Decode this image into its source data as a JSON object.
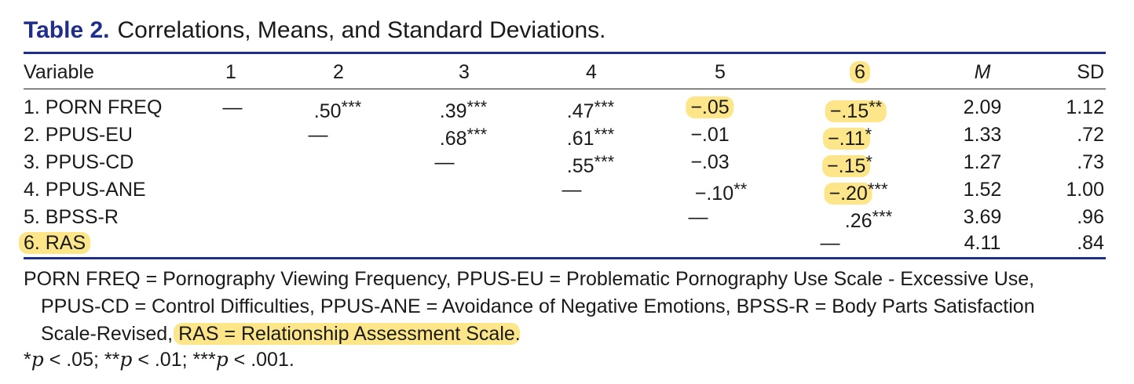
{
  "caption": {
    "label": "Table 2.",
    "title": "Correlations, Means, and Standard Deviations."
  },
  "table": {
    "headers": [
      "Variable",
      "1",
      "2",
      "3",
      "4",
      "5",
      "6",
      "M",
      "SD"
    ],
    "rows": [
      {
        "variable": "1. PORN FREQ",
        "c1": "—",
        "c2": ".50",
        "c2s": "***",
        "c3": ".39",
        "c3s": "***",
        "c4": ".47",
        "c4s": "***",
        "c5": "−.05",
        "c5s": "",
        "c6": "−.15",
        "c6s": "**",
        "m": "2.09",
        "sd": "1.12"
      },
      {
        "variable": "2. PPUS-EU",
        "c2": "—",
        "c3": ".68",
        "c3s": "***",
        "c4": ".61",
        "c4s": "***",
        "c5": "−.01",
        "c5s": "",
        "c6": "−.11",
        "c6s": "*",
        "m": "1.33",
        "sd": ".72"
      },
      {
        "variable": "3. PPUS-CD",
        "c3": "—",
        "c4": ".55",
        "c4s": "***",
        "c5": "−.03",
        "c5s": "",
        "c6": "−.15",
        "c6s": "*",
        "m": "1.27",
        "sd": ".73"
      },
      {
        "variable": "4. PPUS-ANE",
        "c4": "—",
        "c5": "−.10",
        "c5s": "**",
        "c6": "−.20",
        "c6s": "***",
        "m": "1.52",
        "sd": "1.00"
      },
      {
        "variable": "5. BPSS-R",
        "c5": "—",
        "c6": ".26",
        "c6s": "***",
        "m": "3.69",
        "sd": ".96"
      },
      {
        "variable": "6. RAS",
        "c6": "—",
        "m": "4.11",
        "sd": ".84"
      }
    ]
  },
  "note": {
    "line1": "PORN FREQ = Pornography Viewing Frequency, PPUS-EU = Problematic Pornography Use Scale - Excessive Use,",
    "line2": "PPUS-CD = Control Difficulties, PPUS-ANE = Avoidance of Negative Emotions, BPSS-R = Body Parts Satisfaction",
    "line3_pre": "Scale-Revised,",
    "line3_hl": "RAS = Relationship Assessment Scale",
    "line3_post": ".",
    "legend": {
      "a1": "*",
      "p1": "p",
      "t1": " < .05; ",
      "a2": "**",
      "p2": "p",
      "t2": " < .01; ",
      "a3": "***",
      "p3": "p",
      "t3": " < .001."
    }
  },
  "colors": {
    "accent": "#1f2e8c",
    "highlight": "#fde68a"
  }
}
